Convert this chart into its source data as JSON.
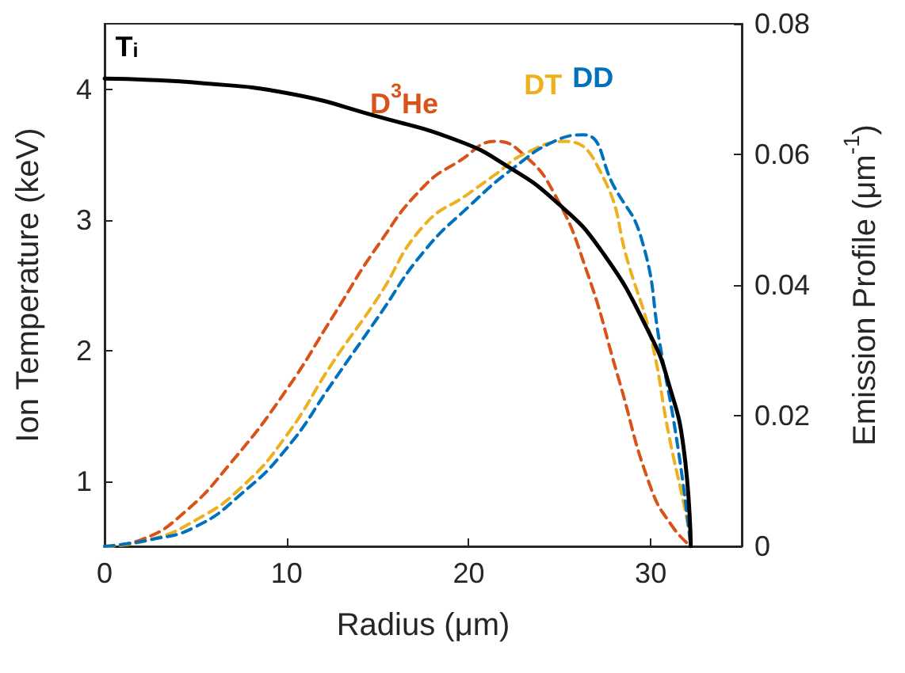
{
  "chart_data": {
    "type": "line",
    "xlabel": "Radius (μm)",
    "ylabel": "Ion Temperature (keV)",
    "y2label": "Emission Profile (μm$^{-1}$)",
    "xlim": [
      0,
      35
    ],
    "xticks": [
      0,
      10,
      20,
      30
    ],
    "ylim": [
      0.5,
      4.5
    ],
    "yticks": [
      1,
      2,
      3,
      4
    ],
    "y2lim": [
      0,
      0.08
    ],
    "y2ticks": [
      0,
      0.02,
      0.04,
      0.06,
      0.08
    ],
    "grid": false,
    "marker": "none",
    "series": [
      {
        "name": "T$_{i}$",
        "color": "#000000",
        "line_style": "solid",
        "x": [
          0,
          2.5,
          5,
          10,
          15,
          19.5,
          22,
          24.7,
          27.3,
          30,
          31,
          31.8,
          32.2
        ],
        "values": [
          4.08,
          4.07,
          4.05,
          3.97,
          3.79,
          3.6,
          3.42,
          3.15,
          2.76,
          2.11,
          1.74,
          1.26,
          0.5
        ]
      },
      {
        "name": "D$^{3}$He",
        "color": "#d95319",
        "line_style": "dashed",
        "axis": "y2",
        "x": [
          0,
          2,
          4.3,
          7,
          10,
          12.5,
          15,
          17.5,
          19.5,
          21.5,
          23,
          24.7,
          26.5,
          28.2,
          30,
          31.2,
          32.2
        ],
        "values": [
          0,
          0.001,
          0.005,
          0.013,
          0.024,
          0.035,
          0.046,
          0.055,
          0.059,
          0.062,
          0.06,
          0.054,
          0.042,
          0.026,
          0.009,
          0.003,
          0
        ]
      },
      {
        "name": "DT",
        "color": "#edb120",
        "line_style": "dashed",
        "axis": "y2",
        "x": [
          0,
          2.5,
          5,
          7.5,
          10,
          12.5,
          15,
          17.5,
          20,
          21.5,
          23,
          25.3,
          27.3,
          28.8,
          30,
          31,
          32,
          32.2
        ],
        "values": [
          0,
          0.001,
          0.004,
          0.009,
          0.017,
          0.028,
          0.038,
          0.049,
          0.054,
          0.057,
          0.06,
          0.062,
          0.057,
          0.043,
          0.032,
          0.017,
          0.004,
          0
        ]
      },
      {
        "name": "DD",
        "color": "#0072bd",
        "line_style": "dashed",
        "axis": "y2",
        "x": [
          0,
          2.5,
          5,
          7.5,
          10,
          12.5,
          15,
          17.5,
          20,
          22.5,
          24.7,
          26.3,
          28,
          29.5,
          30.5,
          31.5,
          32.2
        ],
        "values": [
          0,
          0.001,
          0.003,
          0.008,
          0.015,
          0.025,
          0.035,
          0.045,
          0.052,
          0.058,
          0.062,
          0.063,
          0.055,
          0.047,
          0.031,
          0.015,
          0
        ]
      }
    ]
  }
}
